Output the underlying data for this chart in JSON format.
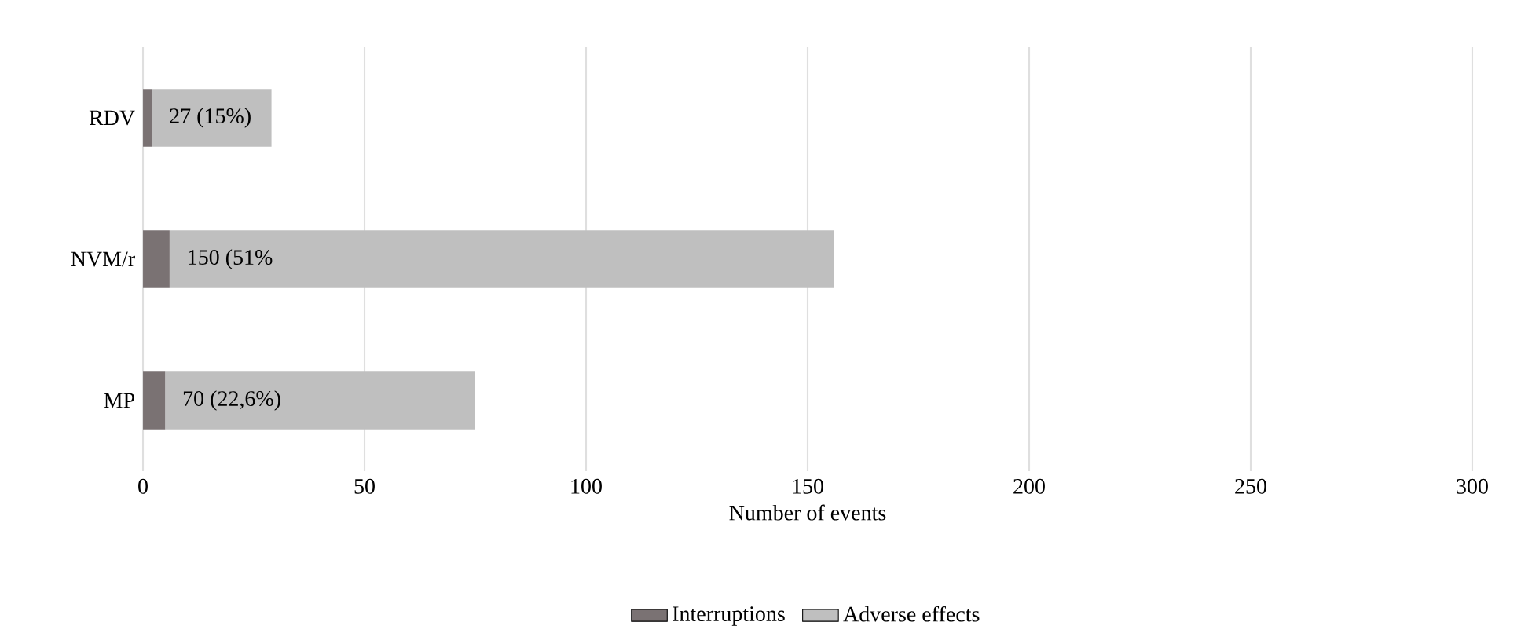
{
  "chart_data": {
    "type": "bar",
    "orientation": "horizontal",
    "stacked": true,
    "categories": [
      "RDV",
      "NVM/r",
      "MP"
    ],
    "series": [
      {
        "name": "Interruptions",
        "color": "#7a7273",
        "values": [
          2,
          6,
          5
        ]
      },
      {
        "name": "Adverse effects",
        "color": "#bfbfbf",
        "values": [
          27,
          150,
          70
        ],
        "value_labels": [
          "27 (15%)",
          "150 (51%",
          "70 (22,6%)"
        ]
      }
    ],
    "xlabel": "Number of events",
    "xlim": [
      0,
      300
    ],
    "xticks": [
      0,
      50,
      100,
      150,
      200,
      250,
      300
    ],
    "grid": "x",
    "legend": "bottom"
  }
}
